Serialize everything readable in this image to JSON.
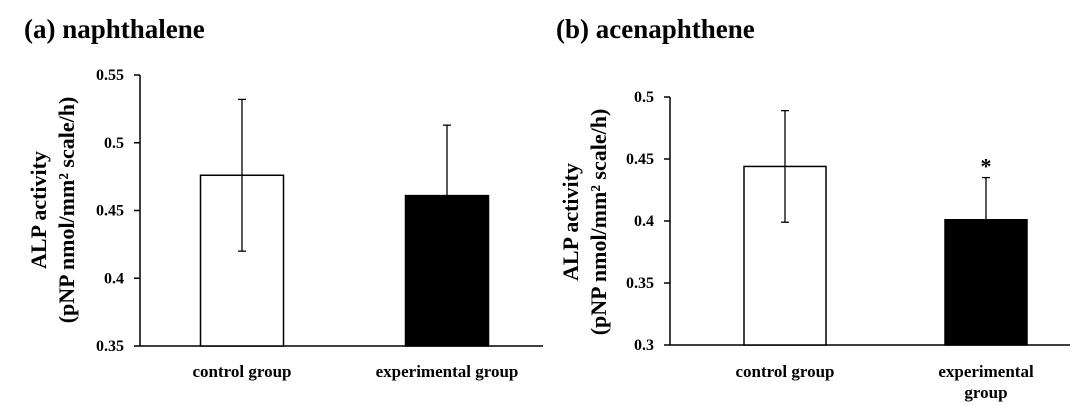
{
  "chart_data": [
    {
      "type": "bar",
      "title": "(a) naphthalene",
      "ylabel_line1": "ALP activity",
      "ylabel_line2": "(pNP nmol/mm² scale/h)",
      "categories": [
        "control group",
        "experimental group"
      ],
      "values": [
        0.476,
        0.461
      ],
      "errors": [
        0.056,
        0.052
      ],
      "bar_colors": [
        "#ffffff",
        "#000000"
      ],
      "annotations": [
        "",
        ""
      ],
      "ylim": [
        0.35,
        0.55
      ],
      "yticks": [
        "0.35",
        "0.4",
        "0.45",
        "0.5",
        "0.55"
      ],
      "grid": false,
      "legend": "none"
    },
    {
      "type": "bar",
      "title": "(b) acenaphthene",
      "ylabel_line1": "ALP activity",
      "ylabel_line2": "(pNP nmol/mm² scale/h)",
      "categories": [
        "control group",
        "experimental group"
      ],
      "values": [
        0.444,
        0.401
      ],
      "errors": [
        0.045,
        0.034
      ],
      "bar_colors": [
        "#ffffff",
        "#000000"
      ],
      "annotations": [
        "",
        "*"
      ],
      "ylim": [
        0.3,
        0.5
      ],
      "yticks": [
        "0.3",
        "0.35",
        "0.4",
        "0.45",
        "0.5"
      ],
      "grid": false,
      "legend": "none"
    }
  ]
}
